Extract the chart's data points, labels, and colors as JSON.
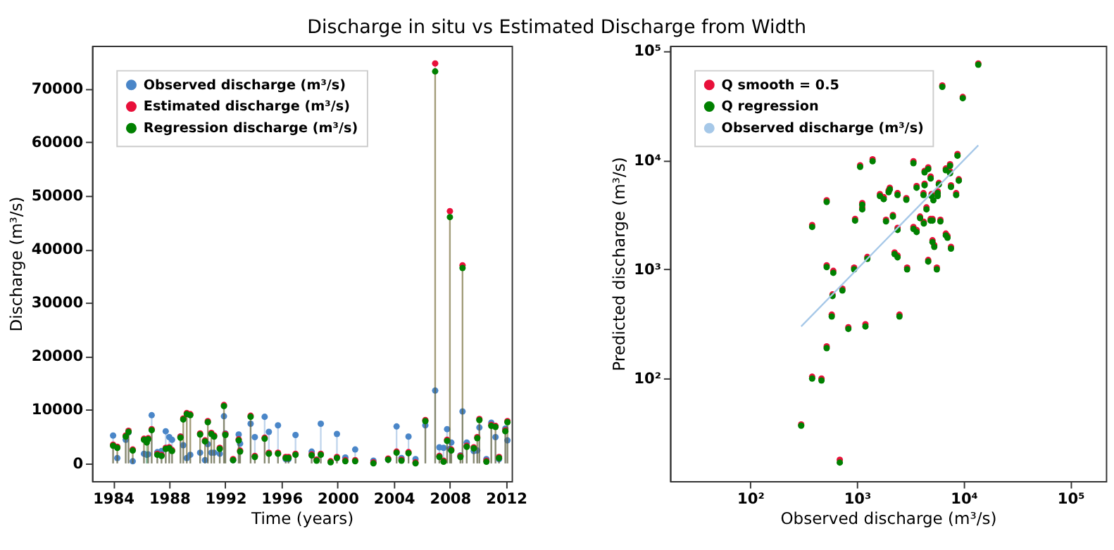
{
  "chart_data": [
    {
      "type": "lollipop",
      "title": "Discharge in situ vs Estimated Discharge from Width",
      "xlabel": "Time (years)",
      "ylabel": "Discharge (m³/s)",
      "xlim": [
        1982.5,
        2012.4
      ],
      "xticks": [
        1984,
        1988,
        1992,
        1996,
        2000,
        2004,
        2008,
        2012
      ],
      "ylim": [
        -3300,
        78000
      ],
      "yticks": [
        0,
        10000,
        20000,
        30000,
        40000,
        50000,
        60000,
        70000
      ],
      "legend": "top left",
      "grid": false,
      "marker": "circle",
      "x": [
        1984.0,
        1984.3,
        1984.9,
        1985.1,
        1985.4,
        1986.2,
        1986.4,
        1986.5,
        1986.75,
        1987.15,
        1987.45,
        1987.75,
        1988.0,
        1988.2,
        1988.8,
        1989.0,
        1989.25,
        1989.5,
        1990.2,
        1990.55,
        1990.75,
        1991.0,
        1991.2,
        1991.6,
        1991.9,
        1992.0,
        1992.55,
        1992.95,
        1993.05,
        1993.8,
        1994.1,
        1994.8,
        1995.1,
        1995.75,
        1996.3,
        1996.5,
        1997.0,
        1998.15,
        1998.5,
        1998.8,
        1999.5,
        1999.95,
        2000.55,
        2001.25,
        2002.55,
        2003.6,
        2004.2,
        2004.55,
        2005.05,
        2005.55,
        2006.25,
        2006.95,
        2007.25,
        2007.55,
        2007.8,
        2008.0,
        2008.1,
        2008.75,
        2008.9,
        2009.2,
        2009.7,
        2009.95,
        2010.1,
        2010.6,
        2010.95,
        2011.25,
        2011.5,
        2011.95,
        2012.1
      ],
      "series": [
        {
          "name": "Observed discharge (m³/s)",
          "color": "#4a86c8",
          "values": [
            5200,
            1000,
            4400,
            5800,
            400,
            1800,
            1600,
            1700,
            9000,
            2100,
            2300,
            6000,
            4900,
            4400,
            5000,
            3400,
            1000,
            1600,
            2000,
            600,
            3600,
            2000,
            2000,
            1800,
            8800,
            5600,
            600,
            5400,
            3700,
            7400,
            4900,
            8700,
            5900,
            7100,
            800,
            800,
            5300,
            2200,
            700,
            7400,
            300,
            5500,
            1100,
            2600,
            500,
            700,
            6900,
            1000,
            5000,
            800,
            7100,
            13600,
            3000,
            2900,
            6400,
            2700,
            3900,
            1500,
            9700,
            3900,
            2300,
            2400,
            6700,
            800,
            7600,
            4900,
            800,
            6500,
            4300
          ]
        },
        {
          "name": "Estimated discharge (m³/s)",
          "color": "#e8103a",
          "values": [
            3500,
            3100,
            5200,
            6100,
            2600,
            4600,
            null,
            4700,
            6400,
            1800,
            1600,
            2900,
            3000,
            2500,
            5000,
            8400,
            9400,
            9200,
            5600,
            4300,
            7900,
            5700,
            5200,
            2900,
            10900,
            5500,
            800,
            4500,
            2400,
            8900,
            1400,
            4800,
            2000,
            2000,
            1200,
            1200,
            1800,
            1700,
            700,
            1800,
            400,
            1200,
            600,
            600,
            200,
            900,
            2200,
            700,
            2100,
            200,
            8100,
            74700,
            1400,
            500,
            4400,
            47100,
            2600,
            1400,
            37000,
            3300,
            3000,
            4900,
            8300,
            500,
            7200,
            7000,
            1200,
            6200,
            7900
          ]
        },
        {
          "name": "Regression discharge (m³/s)",
          "color": "#008000",
          "values": [
            3300,
            2900,
            5000,
            5900,
            2400,
            4400,
            3900,
            4500,
            6200,
            1600,
            1400,
            2700,
            2800,
            2300,
            4800,
            8200,
            9200,
            9000,
            5400,
            4100,
            7700,
            5500,
            5000,
            2700,
            10700,
            5300,
            600,
            4300,
            2200,
            8700,
            1200,
            4600,
            1800,
            1800,
            1000,
            1000,
            1600,
            1500,
            500,
            1600,
            200,
            1000,
            400,
            400,
            0,
            700,
            2000,
            500,
            1900,
            0,
            7900,
            73200,
            1200,
            300,
            4200,
            46000,
            2400,
            1200,
            36500,
            3100,
            2800,
            4700,
            8100,
            300,
            7000,
            6800,
            1000,
            6000,
            7700
          ]
        }
      ]
    },
    {
      "type": "scatter",
      "xlabel": "Observed discharge (m³/s)",
      "ylabel": "Predicted discharge (m³/s)",
      "log": "xy",
      "xlim": [
        17.7,
        215000
      ],
      "ylim": [
        11.5,
        112000
      ],
      "xticks": [
        {
          "value": 100,
          "label": "10²"
        },
        {
          "value": 1000,
          "label": "10³"
        },
        {
          "value": 10000,
          "label": "10⁴"
        },
        {
          "value": 100000,
          "label": "10⁵"
        }
      ],
      "yticks": [
        {
          "value": 100,
          "label": "10²"
        },
        {
          "value": 1000,
          "label": "10³"
        },
        {
          "value": 10000,
          "label": "10⁴"
        },
        {
          "value": 100000,
          "label": "10⁵"
        }
      ],
      "legend": "top left",
      "grid": false,
      "marker": "circle",
      "x": [
        380,
        520,
        520,
        600,
        940,
        960,
        1070,
        1120,
        1120,
        1250,
        1400,
        1640,
        1780,
        1870,
        1980,
        2030,
        2170,
        2250,
        2400,
        2400,
        2400,
        2900,
        2950,
        3380,
        3380,
        3620,
        3620,
        3900,
        4230,
        4200,
        4300,
        4300,
        4480,
        4650,
        4650,
        4900,
        4900,
        5000,
        5200,
        5100,
        5300,
        5100,
        5600,
        5700,
        5700,
        5850,
        6050,
        6800,
        7050,
        6800,
        7450,
        7450,
        7600,
        7600,
        8500,
        8750,
        9000,
        6300,
        9800,
        13700,
        590,
        730,
        580,
        830,
        1200,
        2500,
        520,
        380,
        465,
        300,
        690
      ],
      "series": [
        {
          "name": "Q smooth = 0.5",
          "color": "#e8103a",
          "values": [
            2550,
            4300,
            1090,
            970,
            1040,
            2900,
            9000,
            4050,
            3700,
            1300,
            10200,
            4900,
            4600,
            2850,
            5300,
            5600,
            3150,
            1430,
            1340,
            2400,
            5000,
            4500,
            1040,
            9800,
            2450,
            2300,
            5800,
            3050,
            2730,
            5000,
            6100,
            8000,
            3700,
            8600,
            1220,
            2900,
            7100,
            4900,
            null,
            1850,
            1670,
            2900,
            1040,
            5200,
            4900,
            6200,
            2850,
            2130,
            2030,
            8400,
            9200,
            7900,
            5900,
            1610,
            5000,
            11400,
            6700,
            48500,
            38000,
            77000,
            590,
            665,
            385,
            295,
            315,
            385,
            197,
            104,
            100,
            38,
            18
          ]
        },
        {
          "name": "Q regression",
          "color": "#008000",
          "values": [
            2450,
            4150,
            1050,
            930,
            1000,
            2800,
            8700,
            3900,
            3550,
            1250,
            9800,
            4700,
            4400,
            2750,
            5100,
            5400,
            3050,
            1380,
            1290,
            2300,
            4800,
            4350,
            1000,
            9400,
            2350,
            2200,
            5600,
            2950,
            2630,
            4800,
            5900,
            7750,
            3550,
            8300,
            1180,
            2800,
            6800,
            4700,
            4300,
            1780,
            1610,
            2800,
            1000,
            5000,
            4700,
            6000,
            2750,
            2050,
            1950,
            8100,
            8900,
            7600,
            5700,
            1550,
            4800,
            11000,
            6500,
            47000,
            37000,
            75000,
            570,
            640,
            370,
            285,
            300,
            370,
            190,
            100,
            96,
            37,
            17
          ]
        },
        {
          "name": "Observed discharge (m³/s)",
          "type": "line",
          "marker": "none",
          "color": "#a6c8e8",
          "x": [
            300,
            13700
          ],
          "values": [
            300,
            13700
          ]
        }
      ]
    }
  ]
}
